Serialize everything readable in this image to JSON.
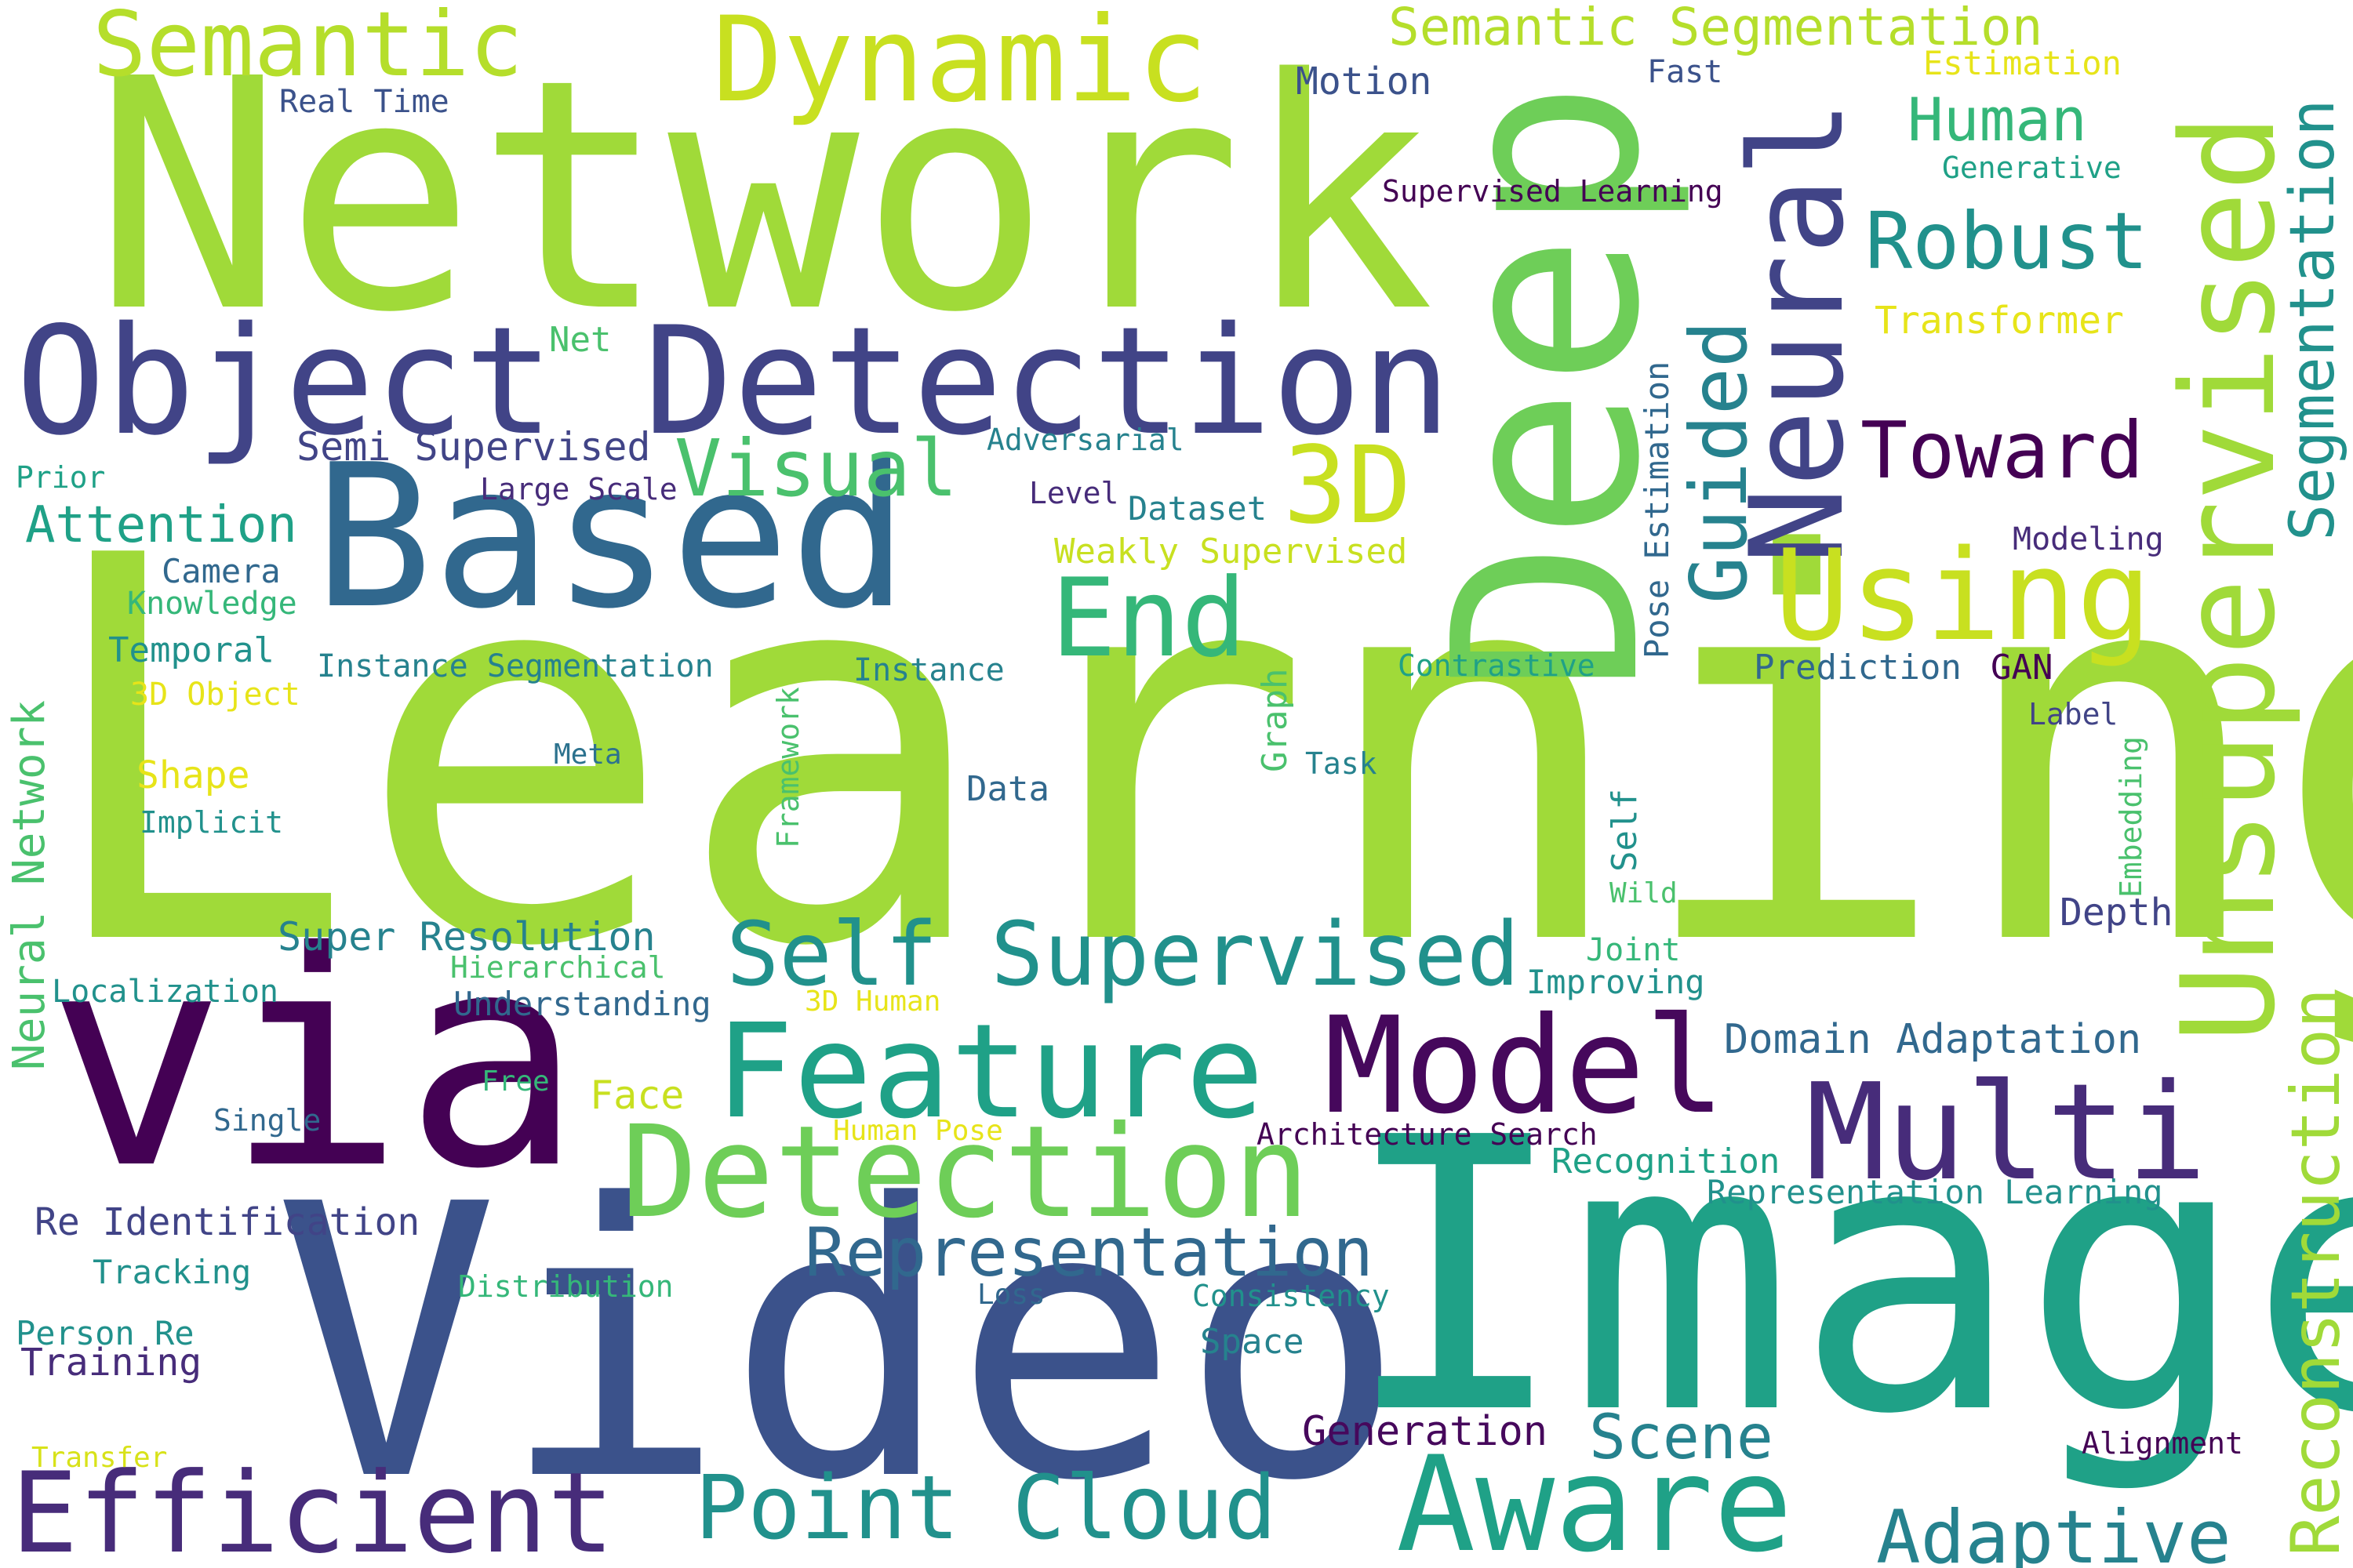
{
  "words": {
    "network": "Network",
    "learning": "Learning",
    "deep": "Deep",
    "via": "via",
    "video": "Video",
    "image": "Image",
    "based": "Based",
    "object_detection": "Object Detection",
    "dynamic": "Dynamic",
    "semantic": "Semantic",
    "semantic_segmentation": "Semantic Segmentation",
    "unsupervised": "Unsupervised",
    "neural": "Neural",
    "feature": "Feature",
    "model": "Model",
    "multi": "Multi",
    "detection": "Detection",
    "efficient": "Efficient",
    "aware": "Aware",
    "point_cloud": "Point Cloud",
    "self_supervised": "Self Supervised",
    "using": "Using",
    "end": "End",
    "3d": "3D",
    "visual": "Visual",
    "guided": "Guided",
    "toward": "Toward",
    "robust": "Robust",
    "human": "Human",
    "reconstruction": "Reconstruction",
    "segmentation": "Segmentation",
    "representation": "Representation",
    "scene": "Scene",
    "adaptive": "Adaptive",
    "generation": "Generation",
    "real_time": "Real Time",
    "motion": "Motion",
    "fast": "Fast",
    "estimation": "Estimation",
    "generative": "Generative",
    "supervised_learning": "Supervised Learning",
    "transformer": "Transformer",
    "net": "Net",
    "semi_supervised": "Semi Supervised",
    "adversarial": "Adversarial",
    "large_scale": "Large Scale",
    "level": "Level",
    "dataset": "Dataset",
    "prior": "Prior",
    "attention": "Attention",
    "camera": "Camera",
    "knowledge": "Knowledge",
    "temporal": "Temporal",
    "weakly_supervised": "Weakly Supervised",
    "pose_estimation": "Pose Estimation",
    "modeling": "Modeling",
    "instance_segmentation": "Instance Segmentation",
    "instance": "Instance",
    "contrastive": "Contrastive",
    "prediction": "Prediction",
    "gan": "GAN",
    "label": "Label",
    "3d_object": "3D Object",
    "graph": "Graph",
    "framework": "Framework",
    "meta": "Meta",
    "task": "Task",
    "shape": "Shape",
    "embedding": "Embedding",
    "neural_network": "Neural Network",
    "implicit": "Implicit",
    "data": "Data",
    "self": "Self",
    "wild": "Wild",
    "depth": "Depth",
    "super_resolution": "Super Resolution",
    "hierarchical": "Hierarchical",
    "joint": "Joint",
    "localization": "Localization",
    "improving": "Improving",
    "understanding": "Understanding",
    "3d_human": "3D Human",
    "domain_adaptation": "Domain Adaptation",
    "free": "Free",
    "face": "Face",
    "single": "Single",
    "human_pose": "Human Pose",
    "architecture_search": "Architecture Search",
    "recognition": "Recognition",
    "re_identification": "Re Identification",
    "representation_learning": "Representation Learning",
    "tracking": "Tracking",
    "distribution": "Distribution",
    "loss": "Loss",
    "consistency": "Consistency",
    "person_re": "Person Re",
    "training": "Training",
    "space": "Space",
    "transfer": "Transfer",
    "alignment": "Alignment"
  },
  "colors": {
    "background": "#ffffff",
    "palette": [
      "#a0da39",
      "#6ece58",
      "#35b779",
      "#1fa187",
      "#21918c",
      "#26828e",
      "#31688e",
      "#3b528b",
      "#414487",
      "#472c7a",
      "#440154",
      "#d8e219"
    ]
  }
}
